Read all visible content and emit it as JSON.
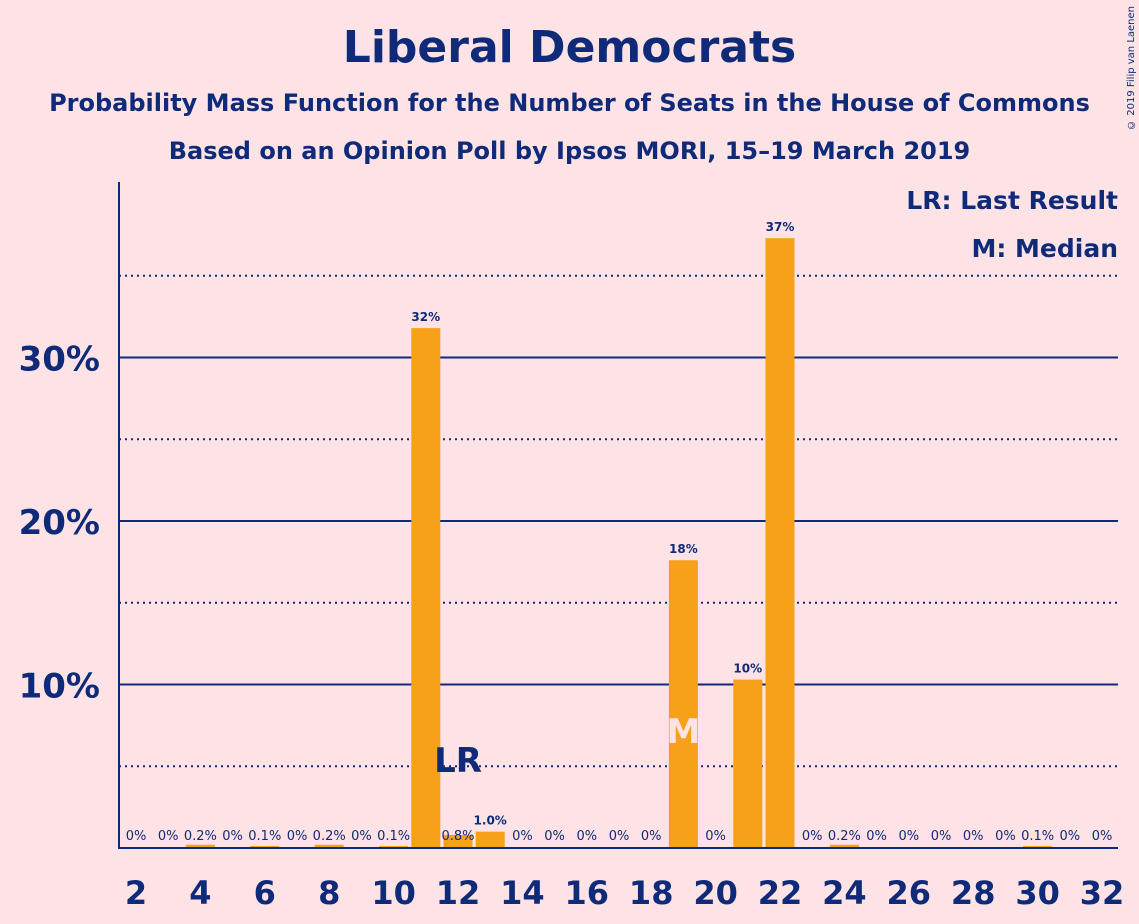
{
  "title": "Liberal Democrats",
  "subtitle1": "Probability Mass Function for the Number of Seats in the House of Commons",
  "subtitle2": "Based on an Opinion Poll by Ipsos MORI, 15–19 March 2019",
  "copyright": "© 2019 Filip van Laenen",
  "legend": {
    "last_result": "LR: Last Result",
    "median": "M: Median"
  },
  "colors": {
    "background": "#fde3e6",
    "bar": "#f7a11a",
    "text": "#0e2a78",
    "grid": "#0e2a78",
    "median_marker": "#fde3e6"
  },
  "chart_data": {
    "type": "bar",
    "x": [
      2,
      3,
      4,
      5,
      6,
      7,
      8,
      9,
      10,
      11,
      12,
      13,
      14,
      15,
      16,
      17,
      18,
      19,
      20,
      21,
      22,
      23,
      24,
      25,
      26,
      27,
      28,
      29,
      30,
      31,
      32
    ],
    "values": [
      0,
      0,
      0.2,
      0,
      0.1,
      0,
      0.2,
      0,
      0.1,
      31.8,
      0.8,
      1.0,
      0,
      0,
      0,
      0,
      0,
      17.6,
      0,
      10.3,
      37.3,
      0,
      0.2,
      0,
      0,
      0,
      0,
      0,
      0.1,
      0,
      0
    ],
    "labels": [
      "0%",
      "0%",
      "0.2%",
      "0%",
      "0.1%",
      "0%",
      "0.2%",
      "0%",
      "0.1%",
      "32%",
      "0.8%",
      "1.0%",
      "0%",
      "0%",
      "0%",
      "0%",
      "0%",
      "18%",
      "0%",
      "10%",
      "37%",
      "0%",
      "0.2%",
      "0%",
      "0%",
      "0%",
      "0%",
      "0%",
      "0.1%",
      "0%",
      "0%"
    ],
    "xticks": [
      2,
      4,
      6,
      8,
      10,
      12,
      14,
      16,
      18,
      20,
      22,
      24,
      26,
      28,
      30,
      32
    ],
    "yticks": [
      10,
      20,
      30
    ],
    "ytick_labels": [
      "10%",
      "20%",
      "30%"
    ],
    "minor_gridlines": [
      5,
      15,
      25,
      35
    ],
    "ylim": [
      0,
      40
    ],
    "last_result": {
      "x": 12,
      "label": "LR"
    },
    "median": {
      "x": 19,
      "label": "M"
    },
    "legend_position": "top-right"
  }
}
